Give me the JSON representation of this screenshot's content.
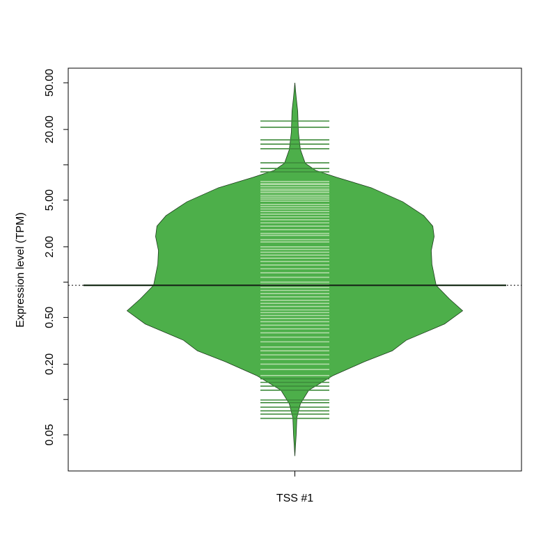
{
  "chart_data": {
    "type": "beanplot",
    "ylabel": "Expression level (TPM)",
    "categories": [
      "TSS #1"
    ],
    "log_y": true,
    "ylim": [
      0.0246,
      66.6
    ],
    "yticks": [
      {
        "value": 0.05,
        "label": "0.05"
      },
      {
        "value": 0.1,
        "label": null
      },
      {
        "value": 0.2,
        "label": "0.20"
      },
      {
        "value": 0.5,
        "label": "0.50"
      },
      {
        "value": 1,
        "label": null
      },
      {
        "value": 2,
        "label": "2.00"
      },
      {
        "value": 5,
        "label": "5.00"
      },
      {
        "value": 10,
        "label": null
      },
      {
        "value": 20,
        "label": "20.00"
      },
      {
        "value": 50,
        "label": "50.00"
      }
    ],
    "color": "#4daf4a",
    "line_color": "#b2dca8",
    "outside_line_color": "#3d8a3a",
    "violin": {
      "y": [
        50,
        37.5,
        28.6,
        19.0,
        13.5,
        10.3,
        8.96,
        7.82,
        6.37,
        4.84,
        3.69,
        3.0,
        2.45,
        1.86,
        1.42,
        0.94,
        0.72,
        0.57,
        0.44,
        0.32,
        0.26,
        0.21,
        0.16,
        0.12,
        0.092,
        0.07,
        0.05,
        0.033
      ],
      "width": [
        0,
        0.008,
        0.017,
        0.021,
        0.033,
        0.062,
        0.124,
        0.249,
        0.456,
        0.643,
        0.768,
        0.822,
        0.83,
        0.813,
        0.817,
        0.842,
        0.921,
        1,
        0.892,
        0.664,
        0.581,
        0.415,
        0.228,
        0.083,
        0.033,
        0.012,
        0.008,
        0
      ]
    },
    "mean": 0.94,
    "points": [
      23.6,
      20.9,
      16.3,
      15.0,
      13.7,
      10.4,
      9.3,
      8.7,
      7.2,
      6.9,
      6.8,
      6.5,
      6.2,
      6.0,
      5.8,
      5.5,
      5.3,
      5.1,
      4.9,
      4.6,
      4.4,
      4.2,
      4.0,
      3.8,
      3.6,
      3.4,
      3.2,
      3.0,
      2.8,
      2.6,
      2.5,
      2.3,
      2.2,
      2.0,
      1.9,
      1.8,
      1.7,
      1.6,
      1.5,
      1.4,
      1.3,
      1.2,
      1.1,
      1.0,
      0.95,
      0.9,
      0.85,
      0.8,
      0.75,
      0.7,
      0.66,
      0.62,
      0.58,
      0.55,
      0.52,
      0.49,
      0.46,
      0.43,
      0.4,
      0.37,
      0.34,
      0.31,
      0.28,
      0.26,
      0.24,
      0.22,
      0.2,
      0.18,
      0.16,
      0.15,
      0.14,
      0.13,
      0.12,
      0.099,
      0.094,
      0.086,
      0.08,
      0.075,
      0.069
    ]
  }
}
